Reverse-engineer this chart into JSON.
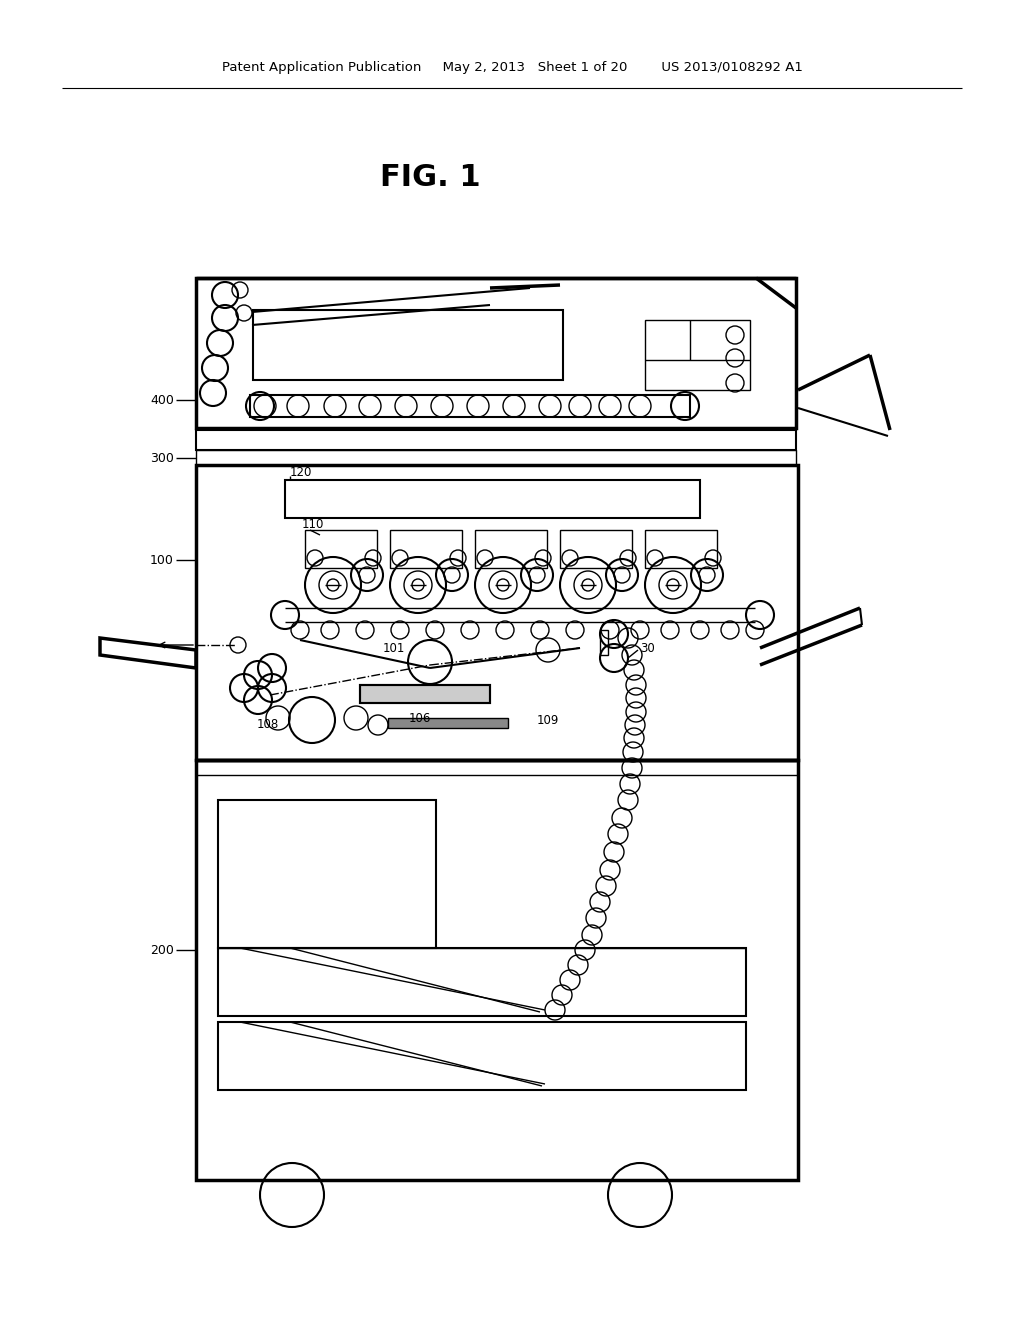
{
  "bg": "#ffffff",
  "lc": "#000000",
  "header": "Patent Application Publication     May 2, 2013   Sheet 1 of 20        US 2013/0108292 A1",
  "fig_label": "FIG. 1"
}
